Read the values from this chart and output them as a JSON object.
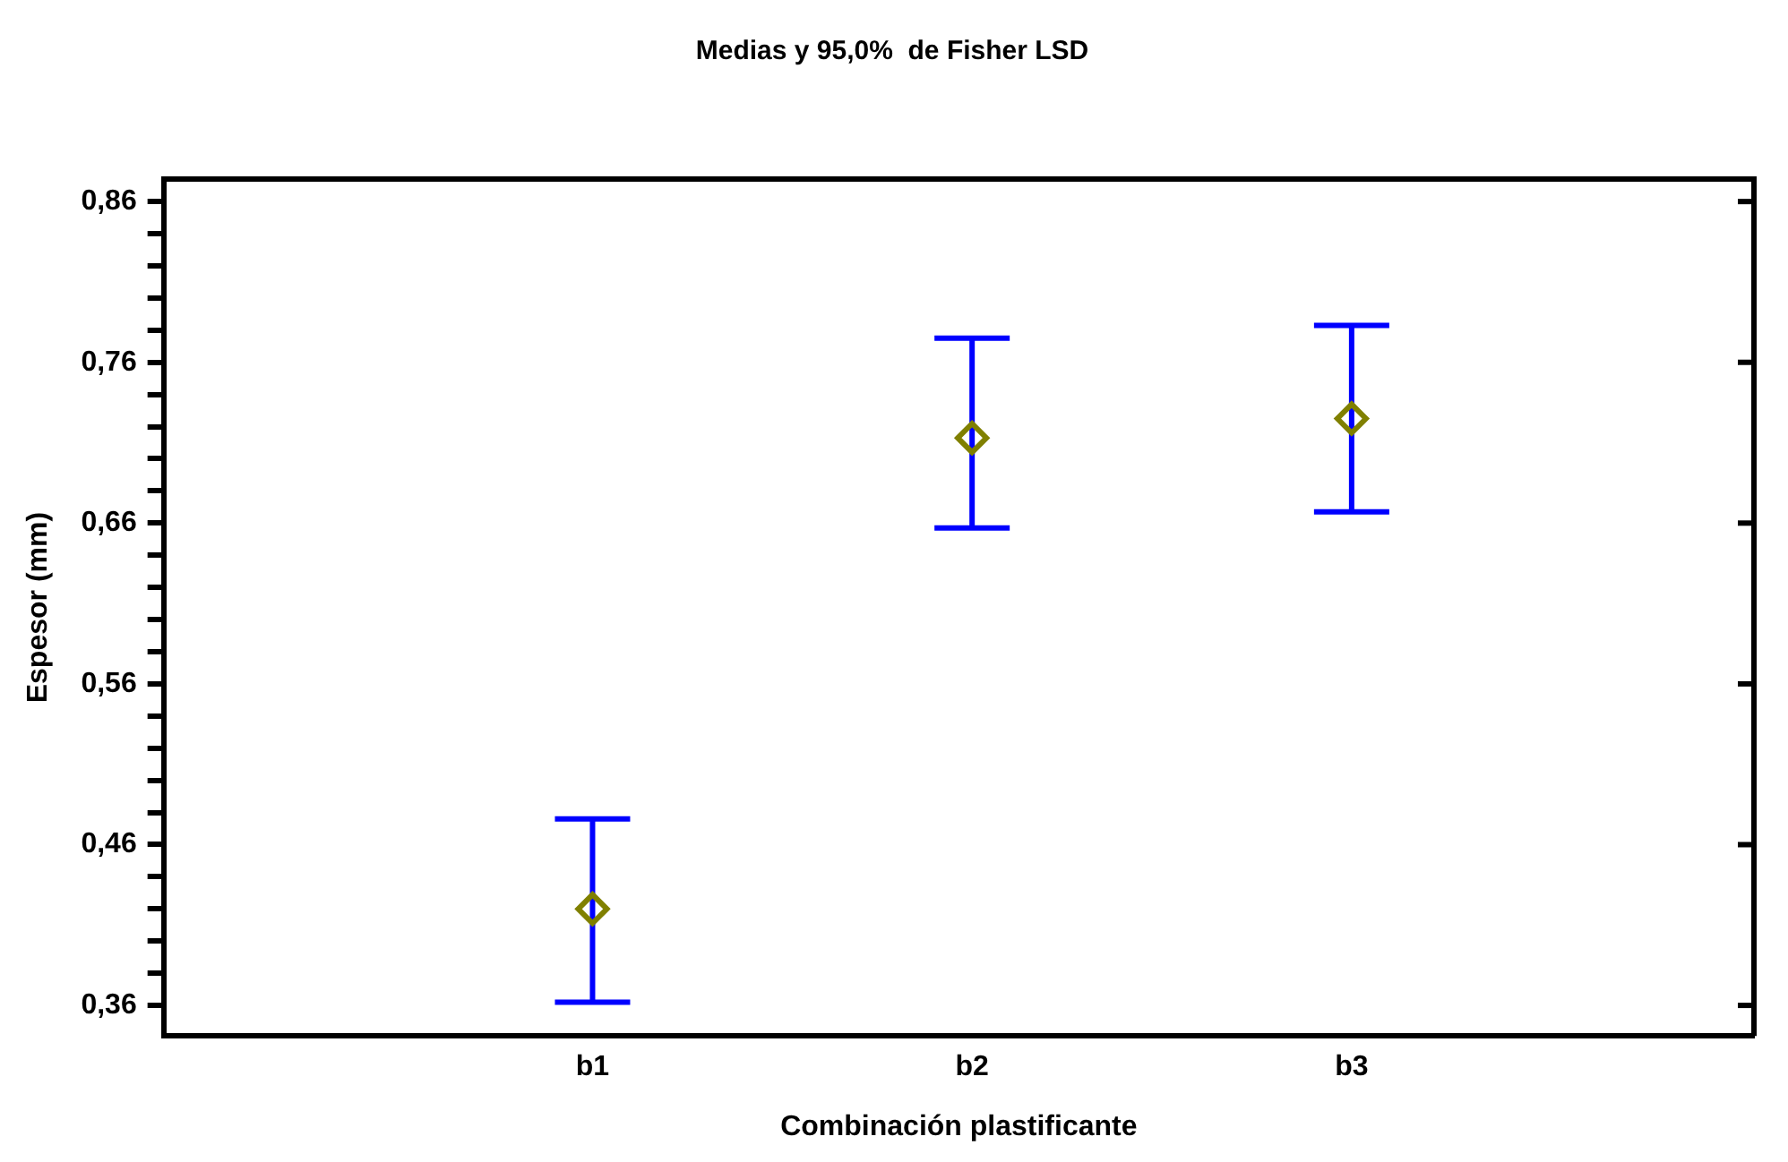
{
  "chart_data": {
    "type": "scatter",
    "title": "Medias y 95,0%  de Fisher LSD",
    "xlabel": "Combinación plastificante",
    "ylabel": "Espesor (mm)",
    "categories": [
      "b1",
      "b2",
      "b3"
    ],
    "series": [
      {
        "color": "#808000",
        "values": [
          0.42,
          0.713,
          0.725
        ],
        "errors": [
          [
            0.362,
            0.476
          ],
          [
            0.657,
            0.775
          ],
          [
            0.667,
            0.783
          ]
        ]
      }
    ],
    "ylim": [
      0.341,
      0.874
    ],
    "yticks": [
      {
        "value": 0.36,
        "label": "0,36"
      },
      {
        "value": 0.38,
        "label": null
      },
      {
        "value": 0.4,
        "label": null
      },
      {
        "value": 0.42,
        "label": null
      },
      {
        "value": 0.44,
        "label": null
      },
      {
        "value": 0.46,
        "label": "0,46"
      },
      {
        "value": 0.48,
        "label": null
      },
      {
        "value": 0.5,
        "label": null
      },
      {
        "value": 0.52,
        "label": null
      },
      {
        "value": 0.54,
        "label": null
      },
      {
        "value": 0.56,
        "label": "0,56"
      },
      {
        "value": 0.58,
        "label": null
      },
      {
        "value": 0.6,
        "label": null
      },
      {
        "value": 0.62,
        "label": null
      },
      {
        "value": 0.64,
        "label": null
      },
      {
        "value": 0.66,
        "label": "0,66"
      },
      {
        "value": 0.68,
        "label": null
      },
      {
        "value": 0.7,
        "label": null
      },
      {
        "value": 0.72,
        "label": null
      },
      {
        "value": 0.74,
        "label": null
      },
      {
        "value": 0.76,
        "label": "0,76"
      },
      {
        "value": 0.78,
        "label": null
      },
      {
        "value": 0.8,
        "label": null
      },
      {
        "value": 0.82,
        "label": null
      },
      {
        "value": 0.84,
        "label": null
      },
      {
        "value": 0.86,
        "label": "0,86"
      }
    ],
    "marker": "diamond",
    "grid": false,
    "legend": false
  }
}
